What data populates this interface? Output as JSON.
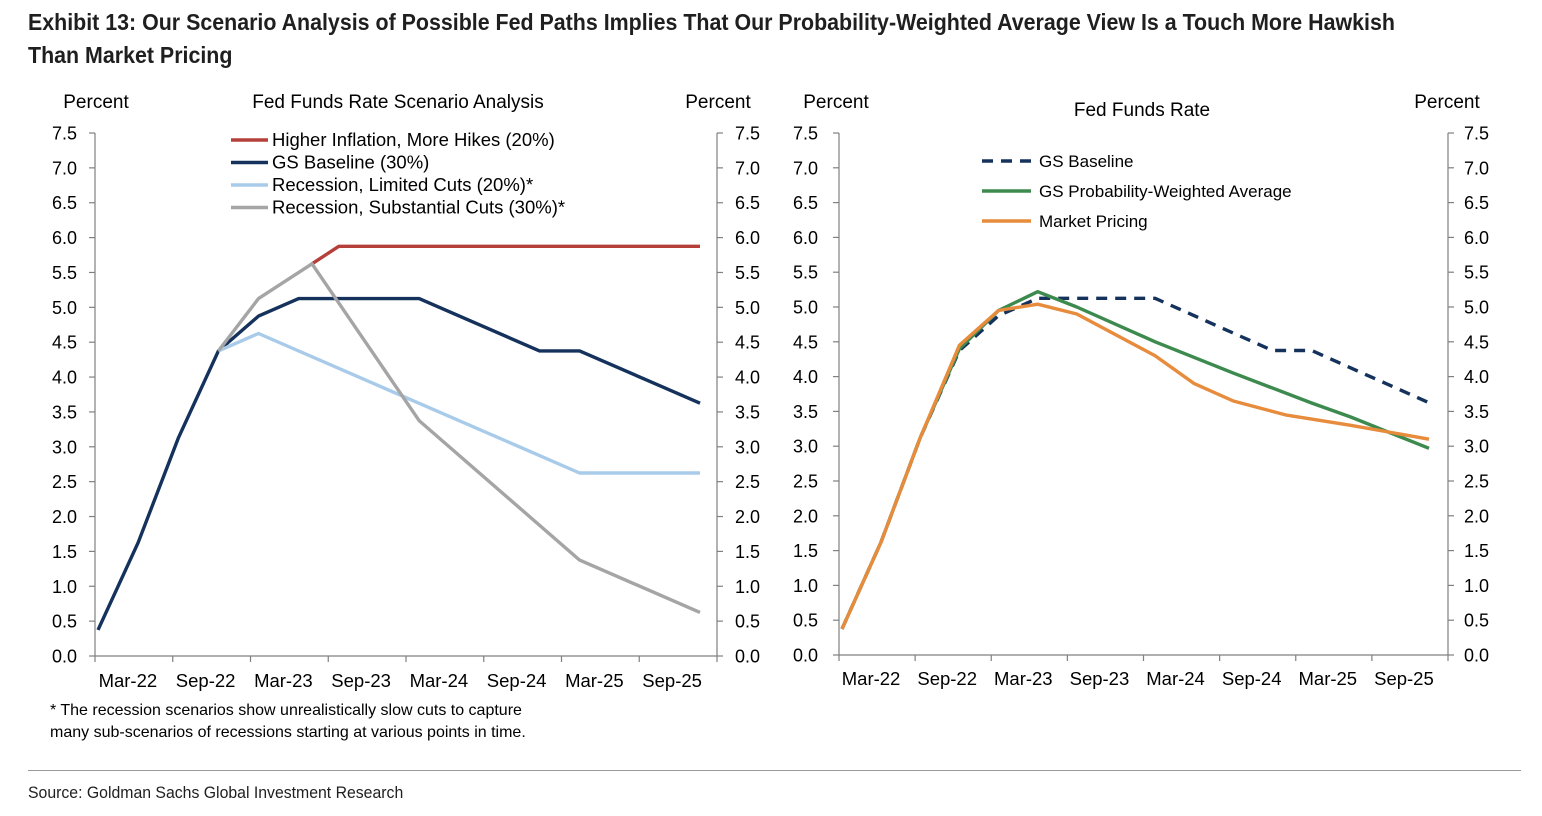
{
  "header": {
    "title_line1": "Exhibit 13: Our Scenario Analysis of Possible Fed Paths Implies That Our Probability-Weighted Average View Is a Touch More Hawkish",
    "title_line2": "Than Market Pricing"
  },
  "chart_data": [
    {
      "type": "line",
      "title": "Fed Funds Rate Scenario Analysis",
      "ylabel_left": "Percent",
      "ylabel_right": "Percent",
      "ylim": [
        0,
        7.5
      ],
      "yticks": [
        "0.0",
        "0.5",
        "1.0",
        "1.5",
        "2.0",
        "2.5",
        "3.0",
        "3.5",
        "4.0",
        "4.5",
        "5.0",
        "5.5",
        "6.0",
        "6.5",
        "7.0",
        "7.5"
      ],
      "x_tick_labels": [
        "Mar-22",
        "Sep-22",
        "Mar-23",
        "Sep-23",
        "Mar-24",
        "Sep-24",
        "Mar-25",
        "Sep-25"
      ],
      "legend_position": "top",
      "series": [
        {
          "name": "Higher Inflation, More Hikes (20%)",
          "color": "#b5403a",
          "points": [
            [
              "2023-07",
              5.625
            ],
            [
              "2023-09",
              5.875
            ],
            [
              "2025-12",
              5.875
            ]
          ]
        },
        {
          "name": "GS Baseline (30%)",
          "color": "#14325c",
          "points": [
            [
              "2022-03",
              0.375
            ],
            [
              "2022-06",
              1.625
            ],
            [
              "2022-09",
              3.125
            ],
            [
              "2022-12",
              4.375
            ],
            [
              "2023-03",
              4.875
            ],
            [
              "2023-06",
              5.125
            ],
            [
              "2024-03",
              5.125
            ],
            [
              "2024-12",
              4.375
            ],
            [
              "2025-03",
              4.375
            ],
            [
              "2025-12",
              3.625
            ]
          ]
        },
        {
          "name": "Recession, Limited Cuts (20%)*",
          "color": "#a9cbea",
          "points": [
            [
              "2022-12",
              4.375
            ],
            [
              "2023-03",
              4.625
            ],
            [
              "2025-03",
              2.625
            ],
            [
              "2025-12",
              2.625
            ]
          ]
        },
        {
          "name": "Recession, Substantial Cuts (30%)*",
          "color": "#a5a5a5",
          "points": [
            [
              "2022-12",
              4.375
            ],
            [
              "2023-03",
              5.125
            ],
            [
              "2023-07",
              5.625
            ],
            [
              "2024-03",
              3.375
            ],
            [
              "2025-03",
              1.375
            ],
            [
              "2025-12",
              0.625
            ]
          ]
        }
      ]
    },
    {
      "type": "line",
      "title": "Fed Funds Rate",
      "ylabel_left": "Percent",
      "ylabel_right": "Percent",
      "ylim": [
        0,
        7.5
      ],
      "yticks": [
        "0.0",
        "0.5",
        "1.0",
        "1.5",
        "2.0",
        "2.5",
        "3.0",
        "3.5",
        "4.0",
        "4.5",
        "5.0",
        "5.5",
        "6.0",
        "6.5",
        "7.0",
        "7.5"
      ],
      "x_tick_labels": [
        "Mar-22",
        "Sep-22",
        "Mar-23",
        "Sep-23",
        "Mar-24",
        "Sep-24",
        "Mar-25",
        "Sep-25"
      ],
      "legend_position": "top-left",
      "series": [
        {
          "name": "GS Baseline",
          "color": "#14325c",
          "dashed": true,
          "points": [
            [
              "2022-03",
              0.375
            ],
            [
              "2022-06",
              1.625
            ],
            [
              "2022-09",
              3.125
            ],
            [
              "2022-12",
              4.375
            ],
            [
              "2023-03",
              4.875
            ],
            [
              "2023-06",
              5.125
            ],
            [
              "2024-03",
              5.125
            ],
            [
              "2024-12",
              4.375
            ],
            [
              "2025-03",
              4.375
            ],
            [
              "2025-12",
              3.625
            ]
          ]
        },
        {
          "name": "GS Probability-Weighted Average",
          "color": "#3d8a4f",
          "points": [
            [
              "2022-03",
              0.375
            ],
            [
              "2022-06",
              1.625
            ],
            [
              "2022-09",
              3.125
            ],
            [
              "2022-12",
              4.4
            ],
            [
              "2023-03",
              4.95
            ],
            [
              "2023-06",
              5.22
            ],
            [
              "2023-09",
              5.0
            ],
            [
              "2024-03",
              4.5
            ],
            [
              "2024-09",
              4.05
            ],
            [
              "2025-03",
              3.62
            ],
            [
              "2025-06",
              3.42
            ],
            [
              "2025-12",
              2.97
            ]
          ]
        },
        {
          "name": "Market Pricing",
          "color": "#e78b3c",
          "points": [
            [
              "2022-03",
              0.375
            ],
            [
              "2022-06",
              1.625
            ],
            [
              "2022-09",
              3.125
            ],
            [
              "2022-12",
              4.45
            ],
            [
              "2023-03",
              4.95
            ],
            [
              "2023-06",
              5.04
            ],
            [
              "2023-09",
              4.9
            ],
            [
              "2024-03",
              4.3
            ],
            [
              "2024-06",
              3.9
            ],
            [
              "2024-09",
              3.65
            ],
            [
              "2025-01",
              3.45
            ],
            [
              "2025-06",
              3.3
            ],
            [
              "2025-12",
              3.1
            ]
          ]
        }
      ]
    }
  ],
  "footnote": {
    "line1": "* The recession scenarios show unrealistically slow cuts to capture",
    "line2": "many sub-scenarios of recessions starting at various points in time."
  },
  "source": "Source: Goldman Sachs Global Investment Research"
}
